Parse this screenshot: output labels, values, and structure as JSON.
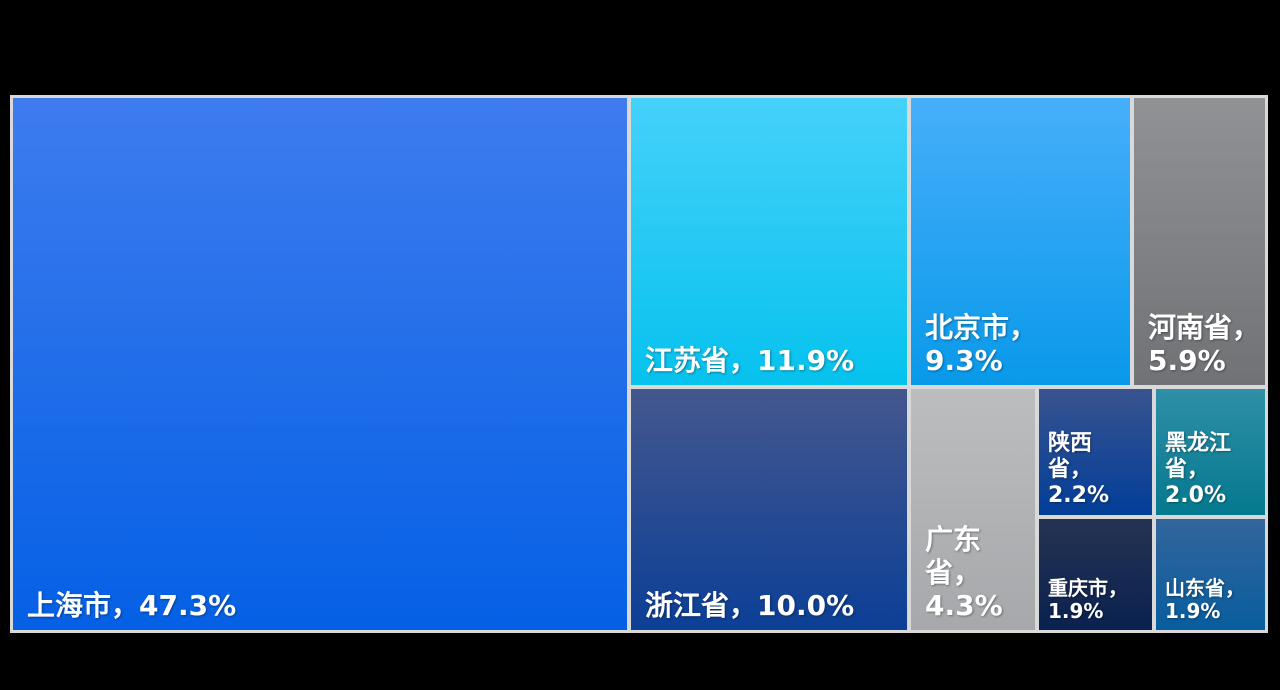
{
  "page": {
    "background": "#000000"
  },
  "chart_data": {
    "type": "treemap",
    "title": "",
    "legend": "none",
    "unit": "%",
    "gap_color": "#D9D9D9",
    "items": [
      {
        "name": "上海市",
        "value": 47.3,
        "label": "上海市，47.3%",
        "color_top": "#3E7CEE",
        "color_bottom": "#0560E5"
      },
      {
        "name": "江苏省",
        "value": 11.9,
        "label": "江苏省，11.9%",
        "color_top": "#45D1FA",
        "color_bottom": "#06C2EE"
      },
      {
        "name": "浙江省",
        "value": 10.0,
        "label": "浙江省，10.0%",
        "color_top": "#44578D",
        "color_bottom": "#0C3F97"
      },
      {
        "name": "北京市",
        "value": 9.3,
        "label": "北京市，\n9.3%",
        "color_top": "#47AFFA",
        "color_bottom": "#0999EA"
      },
      {
        "name": "河南省",
        "value": 5.9,
        "label": "河南省，\n5.9%",
        "color_top": "#909295",
        "color_bottom": "#707276"
      },
      {
        "name": "广东省",
        "value": 4.3,
        "label": "广东\n省，\n4.3%",
        "color_top": "#BBBDBF",
        "color_bottom": "#A6A8AB"
      },
      {
        "name": "陕西省",
        "value": 2.2,
        "label": "陕西\n省，\n2.2%",
        "color_top": "#39538F",
        "color_bottom": "#023E99"
      },
      {
        "name": "黑龙江省",
        "value": 2.0,
        "label": "黑龙江\n省，\n2.0%",
        "color_top": "#2E8FA8",
        "color_bottom": "#04798F"
      },
      {
        "name": "重庆市",
        "value": 1.9,
        "label": "重庆市，\n1.9%",
        "color_top": "#253352",
        "color_bottom": "#0A2150"
      },
      {
        "name": "山东省",
        "value": 1.9,
        "label": "山东省，\n1.9%",
        "color_top": "#33659C",
        "color_bottom": "#085D9E"
      }
    ]
  }
}
